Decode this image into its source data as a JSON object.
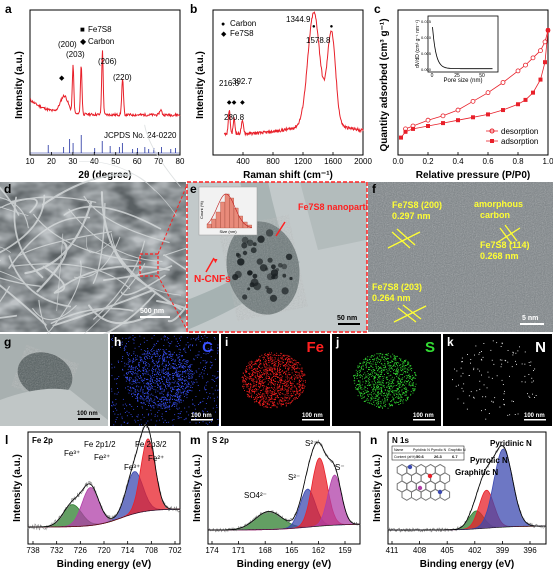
{
  "panels": {
    "a": {
      "label": "a",
      "xlabel": "2θ (degree)",
      "ylabel": "Intensity (a.u.)",
      "legend": [
        "Fe7S8",
        "Carbon"
      ],
      "peaks": [
        "(200)",
        "(203)",
        "(206)",
        "(220)"
      ],
      "reference": "JCPDS No. 24-0220",
      "xticks": [
        "10",
        "20",
        "30",
        "40",
        "50",
        "60",
        "70",
        "80"
      ]
    },
    "b": {
      "label": "b",
      "xlabel": "Raman shift (cm⁻¹)",
      "ylabel": "Intensity (a.u.)",
      "legend": [
        "Carbon",
        "Fe7S8"
      ],
      "peak_labels": [
        "216.6",
        "280.8",
        "392.7",
        "1344.9",
        "1578.8"
      ],
      "xticks": [
        "400",
        "800",
        "1200",
        "1600",
        "2000"
      ]
    },
    "c": {
      "label": "c",
      "xlabel": "Relative pressure (P/P0)",
      "ylabel": "Quantity adsorbed (cm³ g⁻¹)",
      "legend": [
        "desorption",
        "adsorption"
      ],
      "xticks": [
        "0.0",
        "0.2",
        "0.4",
        "0.6",
        "0.8",
        "1.0"
      ],
      "inset": {
        "xlabel": "Pore size (nm)",
        "ylabel": "dV/dD (cm³ g⁻¹ nm⁻¹)",
        "xticks": [
          "0",
          "25",
          "50"
        ],
        "yticks": [
          "0.000",
          "0.005",
          "0.010",
          "0.015"
        ]
      }
    },
    "d": {
      "label": "d",
      "scale": "500 nm"
    },
    "e": {
      "label": "e",
      "particles": "Fe7S8 nanoparticles",
      "fibers": "N-CNFs",
      "scale": "50 nm",
      "hist_xlabel": "Size (nm)",
      "hist_ylabel": "Count (%)"
    },
    "f": {
      "label": "f",
      "lattice1_plane": "Fe7S8 (200)",
      "lattice1_d": "0.297 nm",
      "lattice2_plane": "Fe7S8 (203)",
      "lattice2_d": "0.264 nm",
      "lattice3_plane": "Fe7S8 (114)",
      "lattice3_d": "0.268 nm",
      "amorphous1": "amorphous",
      "amorphous2": "carbon",
      "scale": "5 nm"
    },
    "g": {
      "label": "g",
      "scale": "100 nm"
    },
    "h": {
      "label": "h",
      "element": "C",
      "scale": "100 nm",
      "color": "#3a52ff"
    },
    "i": {
      "label": "i",
      "element": "Fe",
      "scale": "100 nm",
      "color": "#ff2020"
    },
    "j": {
      "label": "j",
      "element": "S",
      "scale": "100 nm",
      "color": "#33dd33"
    },
    "k": {
      "label": "k",
      "element": "N",
      "scale": "100 nm",
      "color": "#ffffff"
    },
    "l": {
      "label": "l",
      "title": "Fe 2p",
      "xlabel": "Binding energy (eV)",
      "ylabel": "Intensity (a.u.)",
      "peaks": [
        "Fe³⁺",
        "Fe 2p1/2",
        "Fe²⁺",
        "Fe 2p3/2",
        "Fe³⁺",
        "Fe²⁺"
      ],
      "xticks": [
        "738",
        "732",
        "726",
        "720",
        "714",
        "708",
        "702"
      ]
    },
    "m": {
      "label": "m",
      "title": "S 2p",
      "xlabel": "Binding energy (eV)",
      "ylabel": "Intensity (a.u.)",
      "peaks": [
        "SO4²⁻",
        "S²⁻",
        "S²⁻",
        "S⁻"
      ],
      "xticks": [
        "174",
        "171",
        "168",
        "165",
        "162",
        "159"
      ]
    },
    "n": {
      "label": "n",
      "title": "N 1s",
      "xlabel": "Binding energy (eV)",
      "ylabel": "Intensity (a.u.)",
      "peaks": [
        "Pyridinic N",
        "Pyrrolic N",
        "Graphitic N"
      ],
      "xticks": [
        "411",
        "408",
        "405",
        "402",
        "399",
        "396"
      ],
      "table_headers": [
        "Name",
        "Pyridinic N",
        "Pyrrolic N",
        "Graphitic N"
      ],
      "table_values": [
        "Content (at%)",
        "50.6",
        "26.3",
        "6.7"
      ]
    }
  },
  "chart_data": [
    {
      "type": "line",
      "panel": "a",
      "xlim": [
        10,
        80
      ],
      "ref_lines": [
        18.5,
        25.7,
        28.5,
        30.1,
        33.9,
        40.2,
        43.7,
        47.4,
        51.7,
        53.1,
        57.9,
        60.2,
        63.6,
        65.4,
        67.8,
        71.4,
        75.7,
        77.9
      ],
      "peaks_x": [
        26.0,
        30.1,
        33.9,
        43.8,
        53.2
      ]
    },
    {
      "type": "line",
      "panel": "b",
      "xlim": [
        0,
        2000
      ],
      "peaks_x": [
        216.6,
        280.8,
        392.7,
        1344.9,
        1578.8
      ]
    },
    {
      "type": "scatter",
      "panel": "c",
      "xlim": [
        0.0,
        1.0
      ],
      "series": [
        {
          "name": "desorption",
          "x": [
            0.05,
            0.1,
            0.2,
            0.3,
            0.4,
            0.5,
            0.6,
            0.7,
            0.8,
            0.85,
            0.9,
            0.95,
            0.98,
            1.0
          ],
          "y": [
            0.18,
            0.2,
            0.24,
            0.27,
            0.31,
            0.37,
            0.43,
            0.5,
            0.58,
            0.62,
            0.67,
            0.72,
            0.78,
            0.86
          ]
        },
        {
          "name": "adsorption",
          "x": [
            0.02,
            0.05,
            0.1,
            0.2,
            0.3,
            0.4,
            0.5,
            0.6,
            0.7,
            0.8,
            0.85,
            0.9,
            0.95,
            0.98,
            1.0
          ],
          "y": [
            0.12,
            0.16,
            0.18,
            0.2,
            0.22,
            0.24,
            0.26,
            0.28,
            0.31,
            0.35,
            0.38,
            0.43,
            0.52,
            0.64,
            0.86
          ]
        }
      ]
    },
    {
      "type": "line",
      "panel": "l",
      "xlim": [
        738,
        702
      ],
      "components": [
        {
          "name": "Fe³⁺",
          "center": 727.5,
          "height": 0.22,
          "width": 2.2,
          "color": "#2f7f2f"
        },
        {
          "name": "Fe²⁺",
          "center": 723.2,
          "height": 0.38,
          "width": 2.0,
          "color": "#b03fa8"
        },
        {
          "name": "Fe³⁺",
          "center": 712.8,
          "height": 0.42,
          "width": 2.0,
          "color": "#3c4ab0"
        },
        {
          "name": "Fe²⁺",
          "center": 709.6,
          "height": 0.72,
          "width": 1.7,
          "color": "#e8202a"
        }
      ]
    },
    {
      "type": "line",
      "panel": "m",
      "xlim": [
        175,
        157
      ],
      "components": [
        {
          "name": "SO4²⁻",
          "center": 167.8,
          "height": 0.18,
          "width": 1.6,
          "color": "#2f7f2f"
        },
        {
          "name": "S²⁻",
          "center": 163.2,
          "height": 0.38,
          "width": 0.9,
          "color": "#3c4ab0"
        },
        {
          "name": "S²⁻",
          "center": 161.8,
          "height": 0.68,
          "width": 0.9,
          "color": "#e8202a"
        },
        {
          "name": "S⁻",
          "center": 160.0,
          "height": 0.5,
          "width": 0.8,
          "color": "#b03fa8"
        }
      ]
    },
    {
      "type": "line",
      "panel": "n",
      "xlim": [
        411,
        394
      ],
      "components": [
        {
          "name": "Graphitic N",
          "center": 401.5,
          "height": 0.18,
          "width": 0.8,
          "color": "#2f7f2f"
        },
        {
          "name": "Pyrrolic N",
          "center": 400.4,
          "height": 0.38,
          "width": 0.8,
          "color": "#e8202a"
        },
        {
          "name": "Pyridinic N",
          "center": 398.6,
          "height": 0.78,
          "width": 1.0,
          "color": "#3c4ab0"
        }
      ]
    }
  ]
}
